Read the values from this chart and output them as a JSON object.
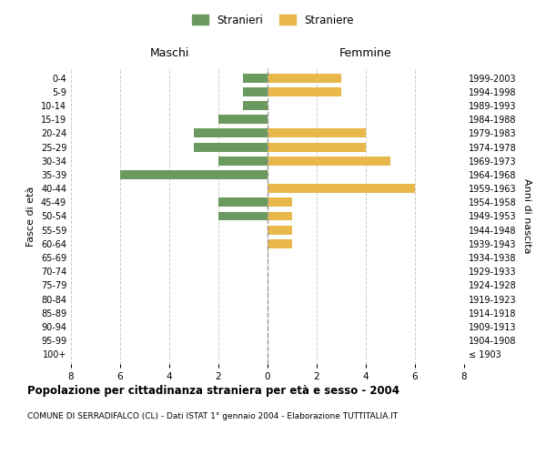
{
  "age_groups": [
    "100+",
    "95-99",
    "90-94",
    "85-89",
    "80-84",
    "75-79",
    "70-74",
    "65-69",
    "60-64",
    "55-59",
    "50-54",
    "45-49",
    "40-44",
    "35-39",
    "30-34",
    "25-29",
    "20-24",
    "15-19",
    "10-14",
    "5-9",
    "0-4"
  ],
  "birth_years": [
    "≤ 1903",
    "1904-1908",
    "1909-1913",
    "1914-1918",
    "1919-1923",
    "1924-1928",
    "1929-1933",
    "1934-1938",
    "1939-1943",
    "1944-1948",
    "1949-1953",
    "1954-1958",
    "1959-1963",
    "1964-1968",
    "1969-1973",
    "1974-1978",
    "1979-1983",
    "1984-1988",
    "1989-1993",
    "1994-1998",
    "1999-2003"
  ],
  "males": [
    0,
    0,
    0,
    0,
    0,
    0,
    0,
    0,
    0,
    0,
    2,
    2,
    0,
    6,
    2,
    3,
    3,
    2,
    1,
    1,
    1
  ],
  "females": [
    0,
    0,
    0,
    0,
    0,
    0,
    0,
    0,
    1,
    1,
    1,
    1,
    6,
    0,
    5,
    4,
    4,
    0,
    0,
    3,
    3
  ],
  "color_male": "#6b9a5e",
  "color_female": "#e8b84b",
  "xlim": 8,
  "title": "Popolazione per cittadinanza straniera per età e sesso - 2004",
  "subtitle": "COMUNE DI SERRADIFALCO (CL) - Dati ISTAT 1° gennaio 2004 - Elaborazione TUTTITALIA.IT",
  "ylabel_left": "Fasce di età",
  "ylabel_right": "Anni di nascita",
  "label_maschi": "Maschi",
  "label_femmine": "Femmine",
  "legend_stranieri": "Stranieri",
  "legend_straniere": "Straniere",
  "bg_color": "#ffffff",
  "grid_color": "#cccccc"
}
